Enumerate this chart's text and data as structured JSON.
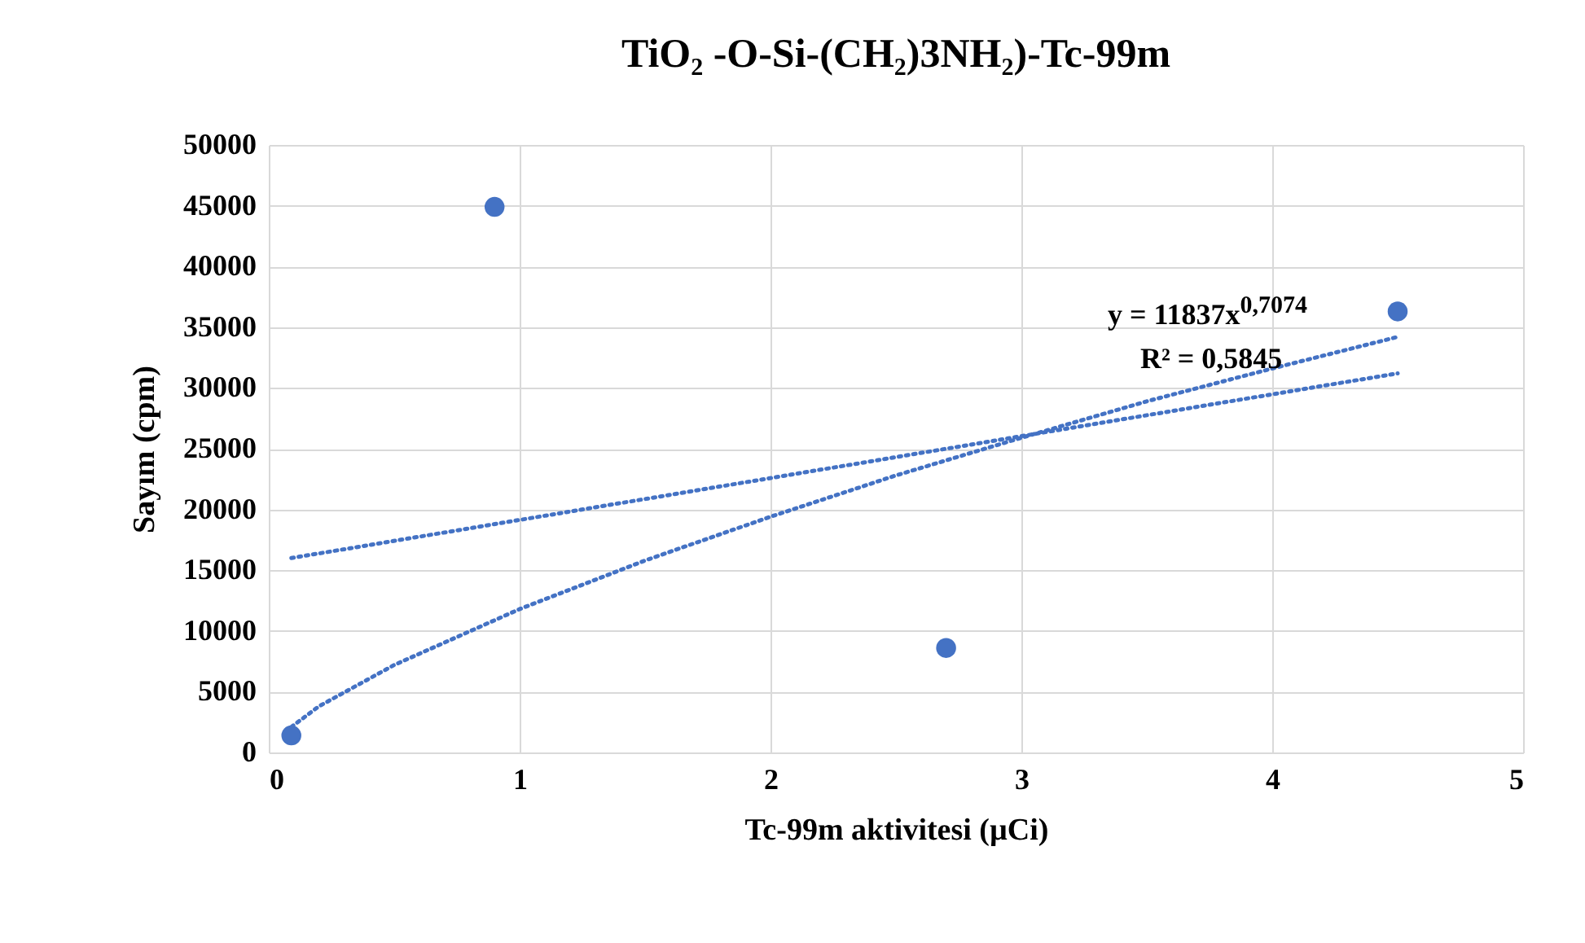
{
  "chart_data": {
    "type": "scatter",
    "title": "TiO₂ -O-Si-(CH₂)3NH₂)-Tc-99m",
    "xlabel": "Tc-99m aktivitesi (µCi)",
    "ylabel": "Sayım (cpm)",
    "xlim": [
      0,
      5
    ],
    "xticks": [
      0,
      1,
      2,
      3,
      4,
      5
    ],
    "ylim": [
      0,
      50000
    ],
    "yticks": [
      0,
      5000,
      10000,
      15000,
      20000,
      25000,
      30000,
      35000,
      40000,
      45000,
      50000
    ],
    "grid": true,
    "series": [
      {
        "type": "scatter",
        "marker": "circle",
        "color": "#4472c4",
        "x": [
          0.09,
          0.9,
          2.7,
          4.5
        ],
        "values": [
          1400,
          44900,
          8600,
          36300
        ]
      },
      {
        "type": "line",
        "color": "#4472c4",
        "line_style": "dotted",
        "marker": "none",
        "x": [
          0.09,
          4.5
        ],
        "values": [
          16000,
          31200
        ]
      },
      {
        "type": "line",
        "color": "#4472c4",
        "line_style": "dotted",
        "marker": "none",
        "x": [
          0.09,
          0.2,
          0.5,
          1,
          1.5,
          2,
          2.5,
          3,
          3.5,
          4,
          4.5
        ],
        "values": [
          2100,
          3800,
          7200,
          11800,
          15800,
          19400,
          22800,
          25900,
          28900,
          31600,
          34200
        ]
      }
    ],
    "annotations": [
      "y = 11837x$^{0,7074}$",
      "R² = 0,5845"
    ]
  }
}
